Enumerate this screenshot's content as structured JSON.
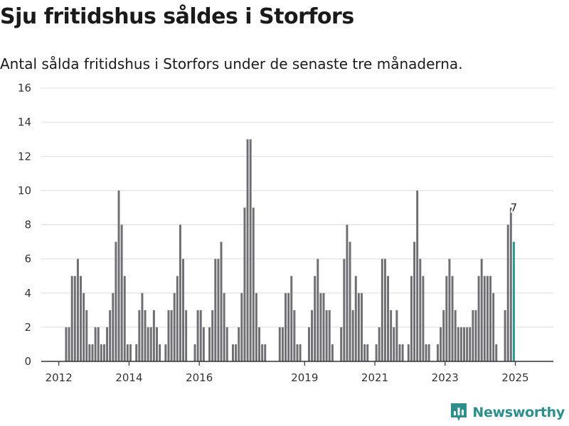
{
  "title": "Sju fritidshus såldes i Storfors",
  "subtitle": "Antal sålda fritidshus i Storfors under de senaste tre månaderna.",
  "brand": {
    "name": "Newsworthy",
    "logo_icon": "bar-chart-logo-icon",
    "color": "#2c8f8b"
  },
  "chart_data": {
    "type": "bar",
    "xlabel": "",
    "ylabel": "",
    "ylim": [
      0,
      16
    ],
    "yticks": [
      0,
      2,
      4,
      6,
      8,
      10,
      12,
      14,
      16
    ],
    "xlim": [
      "2011-07",
      "2026-02"
    ],
    "xticks": [
      "2012",
      "2014",
      "2016",
      "2019",
      "2021",
      "2023",
      "2025"
    ],
    "grid": true,
    "colors": {
      "bar": "#6f6e73",
      "highlight": "#2b9a93",
      "grid": "#dddddd",
      "axis": "#333333"
    },
    "highlight_label": "7",
    "series": [
      {
        "start": "2012-01",
        "step": "month",
        "values": [
          0,
          0,
          2,
          2,
          5,
          5,
          6,
          5,
          4,
          3,
          1,
          1,
          2,
          2,
          1,
          1,
          2,
          3,
          4,
          7,
          10,
          8,
          5,
          1,
          1,
          0,
          1,
          3,
          4,
          3,
          2,
          2,
          3,
          2,
          1,
          0,
          1,
          3,
          3,
          4,
          5,
          8,
          6,
          3,
          0,
          0,
          1,
          3,
          3,
          2,
          0,
          2,
          3,
          6,
          6,
          7,
          4,
          2,
          0,
          1,
          1,
          2,
          4,
          9,
          13,
          13,
          9,
          4,
          2,
          1,
          1,
          0,
          0,
          0,
          0,
          2,
          2,
          4,
          4,
          5,
          3,
          1,
          1,
          0,
          0,
          2,
          3,
          5,
          6,
          4,
          4,
          3,
          3,
          1,
          0,
          0,
          2,
          6,
          8,
          7,
          3,
          5,
          4,
          4,
          1,
          1,
          0,
          0,
          1,
          2,
          6,
          6,
          5,
          3,
          2,
          3,
          1,
          1,
          0,
          1,
          5,
          7,
          10,
          6,
          5,
          1,
          1,
          0,
          0,
          1,
          2,
          3,
          5,
          6,
          5,
          3,
          2,
          2,
          2,
          2,
          2,
          3,
          3,
          5,
          6,
          5,
          5,
          5,
          4,
          1,
          0,
          0,
          3,
          8,
          9,
          7
        ]
      }
    ]
  }
}
